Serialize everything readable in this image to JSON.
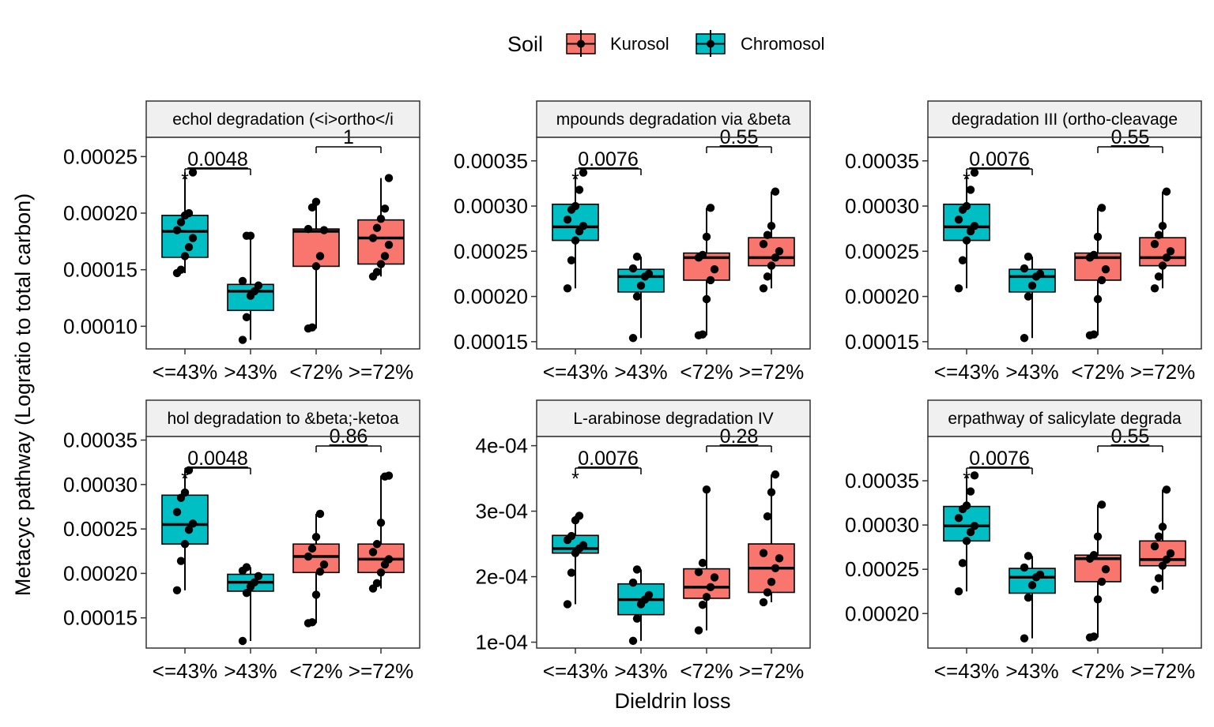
{
  "legend": {
    "title": "Soil",
    "items": [
      {
        "label": "Kurosol",
        "color": "#F8766D"
      },
      {
        "label": "Chromosol",
        "color": "#00BFC4"
      }
    ]
  },
  "chart_data": {
    "type": "boxplot",
    "xlabel": "Dieldrin loss",
    "ylabel": "Metacyc pathway (Logratio to total carbon)",
    "categories": [
      "<=43%",
      ">43%",
      "<72%",
      ">=72%"
    ],
    "category_soil": [
      "Chromosol",
      "Chromosol",
      "Kurosol",
      "Kurosol"
    ],
    "colors": {
      "Kurosol": "#F8766D",
      "Chromosol": "#00BFC4"
    },
    "legend_position": "top",
    "grid": false,
    "panels": [
      {
        "title": "echol degradation (<i>ortho</i",
        "ylim": [
          8e-05,
          0.000267
        ],
        "ticks": [
          "0.00010",
          "0.00015",
          "0.00020",
          "0.00025"
        ],
        "tick_values": [
          0.0001,
          0.00015,
          0.0002,
          0.00025
        ],
        "comparisons": [
          {
            "from": 0,
            "to": 1,
            "label": "0.0048",
            "star": "*"
          },
          {
            "from": 2,
            "to": 3,
            "label": "1",
            "star": ""
          }
        ],
        "boxes": [
          {
            "q1": 0.000161,
            "median": 0.000184,
            "q3": 0.000198,
            "low": 0.000147,
            "high": 0.000236,
            "points": [
              0.000147,
              0.00015,
              0.000162,
              0.00017,
              0.000178,
              0.000185,
              0.000192,
              0.000198,
              0.0002,
              0.000236
            ]
          },
          {
            "q1": 0.000114,
            "median": 0.000131,
            "q3": 0.000137,
            "low": 8.8e-05,
            "high": 0.00018,
            "points": [
              8.8e-05,
              0.000108,
              0.000127,
              0.000131,
              0.000136,
              0.00014,
              0.00018,
              0.00018
            ]
          },
          {
            "q1": 0.000153,
            "median": 0.000184,
            "q3": 0.000186,
            "low": 9.8e-05,
            "high": 0.00021,
            "points": [
              9.8e-05,
              9.9e-05,
              0.000153,
              0.000162,
              0.000185,
              0.000186,
              0.000205,
              0.00021
            ]
          },
          {
            "q1": 0.000155,
            "median": 0.000178,
            "q3": 0.000194,
            "low": 0.000144,
            "high": 0.000231,
            "points": [
              0.000144,
              0.000148,
              0.000155,
              0.000162,
              0.000172,
              0.000178,
              0.000187,
              0.000195,
              0.000204,
              0.000231
            ]
          }
        ]
      },
      {
        "title": "mpounds degradation via &beta",
        "ylim": [
          0.000142,
          0.000376
        ],
        "ticks": [
          "0.00015",
          "0.00020",
          "0.00025",
          "0.00030",
          "0.00035"
        ],
        "tick_values": [
          0.00015,
          0.0002,
          0.00025,
          0.0003,
          0.00035
        ],
        "comparisons": [
          {
            "from": 0,
            "to": 1,
            "label": "0.0076",
            "star": "*"
          },
          {
            "from": 2,
            "to": 3,
            "label": "0.55",
            "star": ""
          }
        ],
        "boxes": [
          {
            "q1": 0.000262,
            "median": 0.000277,
            "q3": 0.000302,
            "low": 0.000209,
            "high": 0.000337,
            "points": [
              0.000209,
              0.00024,
              0.000262,
              0.000272,
              0.000278,
              0.000285,
              0.000296,
              0.0003,
              0.000318,
              0.000337
            ]
          },
          {
            "q1": 0.000205,
            "median": 0.000222,
            "q3": 0.00023,
            "low": 0.000154,
            "high": 0.000244,
            "points": [
              0.000154,
              0.0002,
              0.000212,
              0.000222,
              0.000225,
              0.000231,
              0.000244
            ]
          },
          {
            "q1": 0.000218,
            "median": 0.000243,
            "q3": 0.000248,
            "low": 0.000157,
            "high": 0.000298,
            "points": [
              0.000157,
              0.000158,
              0.000197,
              0.000218,
              0.00023,
              0.000243,
              0.000246,
              0.000266,
              0.000298
            ]
          },
          {
            "q1": 0.000234,
            "median": 0.000243,
            "q3": 0.000265,
            "low": 0.000209,
            "high": 0.000316,
            "points": [
              0.000209,
              0.000222,
              0.000234,
              0.000243,
              0.00025,
              0.000258,
              0.000268,
              0.000278,
              0.000316
            ]
          }
        ]
      },
      {
        "title": "degradation III (ortho-cleavage",
        "ylim": [
          0.000142,
          0.000376
        ],
        "ticks": [
          "0.00015",
          "0.00020",
          "0.00025",
          "0.00030",
          "0.00035"
        ],
        "tick_values": [
          0.00015,
          0.0002,
          0.00025,
          0.0003,
          0.00035
        ],
        "comparisons": [
          {
            "from": 0,
            "to": 1,
            "label": "0.0076",
            "star": "*"
          },
          {
            "from": 2,
            "to": 3,
            "label": "0.55",
            "star": ""
          }
        ],
        "boxes": [
          {
            "q1": 0.000262,
            "median": 0.000277,
            "q3": 0.000302,
            "low": 0.000209,
            "high": 0.000337,
            "points": [
              0.000209,
              0.00024,
              0.000262,
              0.000272,
              0.000278,
              0.000285,
              0.000296,
              0.0003,
              0.000318,
              0.000337
            ]
          },
          {
            "q1": 0.000205,
            "median": 0.000222,
            "q3": 0.00023,
            "low": 0.000154,
            "high": 0.000244,
            "points": [
              0.000154,
              0.0002,
              0.000212,
              0.000222,
              0.000225,
              0.000231,
              0.000244
            ]
          },
          {
            "q1": 0.000218,
            "median": 0.000243,
            "q3": 0.000248,
            "low": 0.000157,
            "high": 0.000298,
            "points": [
              0.000157,
              0.000158,
              0.000197,
              0.000218,
              0.00023,
              0.000243,
              0.000246,
              0.000266,
              0.000298
            ]
          },
          {
            "q1": 0.000234,
            "median": 0.000243,
            "q3": 0.000265,
            "low": 0.000209,
            "high": 0.000316,
            "points": [
              0.000209,
              0.000222,
              0.000234,
              0.000243,
              0.00025,
              0.000258,
              0.000268,
              0.000278,
              0.000316
            ]
          }
        ]
      },
      {
        "title": "hol degradation to &beta;-ketoa",
        "ylim": [
          0.000116,
          0.000354
        ],
        "ticks": [
          "0.00015",
          "0.00020",
          "0.00025",
          "0.00030",
          "0.00035"
        ],
        "tick_values": [
          0.00015,
          0.0002,
          0.00025,
          0.0003,
          0.00035
        ],
        "comparisons": [
          {
            "from": 0,
            "to": 1,
            "label": "0.0048",
            "star": "*"
          },
          {
            "from": 2,
            "to": 3,
            "label": "0.86",
            "star": ""
          }
        ],
        "boxes": [
          {
            "q1": 0.000233,
            "median": 0.000255,
            "q3": 0.000288,
            "low": 0.000181,
            "high": 0.000316,
            "points": [
              0.000181,
              0.000214,
              0.000233,
              0.000249,
              0.000256,
              0.000269,
              0.000285,
              0.000291,
              0.000316
            ]
          },
          {
            "q1": 0.00018,
            "median": 0.00019,
            "q3": 0.000199,
            "low": 0.000124,
            "high": 0.000207,
            "points": [
              0.000124,
              0.000178,
              0.000185,
              0.00019,
              0.000197,
              0.000203,
              0.000207
            ]
          },
          {
            "q1": 0.000201,
            "median": 0.000219,
            "q3": 0.000233,
            "low": 0.000144,
            "high": 0.000267,
            "points": [
              0.000144,
              0.000145,
              0.000176,
              0.000202,
              0.00021,
              0.000219,
              0.000228,
              0.000241,
              0.000267
            ]
          },
          {
            "q1": 0.000201,
            "median": 0.000216,
            "q3": 0.000233,
            "low": 0.000183,
            "high": 0.00031,
            "points": [
              0.000183,
              0.000189,
              0.000201,
              0.00021,
              0.000216,
              0.000224,
              0.000233,
              0.000257,
              0.000309,
              0.00031
            ]
          }
        ]
      },
      {
        "title": "L-arabinose degradation IV",
        "ylim": [
          9.1e-05,
          0.000414
        ],
        "ticks": [
          "1e-04",
          "2e-04",
          "3e-04",
          "4e-04"
        ],
        "tick_values": [
          0.0001,
          0.0002,
          0.0003,
          0.0004
        ],
        "comparisons": [
          {
            "from": 0,
            "to": 1,
            "label": "0.0076",
            "star": "*"
          },
          {
            "from": 2,
            "to": 3,
            "label": "0.28",
            "star": ""
          }
        ],
        "boxes": [
          {
            "q1": 0.000236,
            "median": 0.000243,
            "q3": 0.000263,
            "low": 0.000158,
            "high": 0.000293,
            "points": [
              0.000158,
              0.000206,
              0.000236,
              0.000243,
              0.000248,
              0.000256,
              0.000262,
              0.000286,
              0.000293
            ]
          },
          {
            "q1": 0.000142,
            "median": 0.000165,
            "q3": 0.000189,
            "low": 0.000102,
            "high": 0.000211,
            "points": [
              0.000102,
              0.000136,
              0.000158,
              0.000165,
              0.000172,
              0.000191,
              0.000211
            ]
          },
          {
            "q1": 0.000167,
            "median": 0.000184,
            "q3": 0.000212,
            "low": 0.000118,
            "high": 0.000333,
            "points": [
              0.000118,
              0.000157,
              0.000169,
              0.000184,
              0.000199,
              0.000207,
              0.000221,
              0.000333
            ]
          },
          {
            "q1": 0.000176,
            "median": 0.000213,
            "q3": 0.00025,
            "low": 0.000161,
            "high": 0.000356,
            "points": [
              0.000161,
              0.000176,
              0.000192,
              0.000213,
              0.000228,
              0.000236,
              0.000292,
              0.000329,
              0.000356
            ]
          }
        ]
      },
      {
        "title": "erpathway of salicylate degrada",
        "ylim": [
          0.000161,
          0.0004
        ],
        "ticks": [
          "0.00020",
          "0.00025",
          "0.00030",
          "0.00035"
        ],
        "tick_values": [
          0.0002,
          0.00025,
          0.0003,
          0.00035
        ],
        "comparisons": [
          {
            "from": 0,
            "to": 1,
            "label": "0.0076",
            "star": "*"
          },
          {
            "from": 2,
            "to": 3,
            "label": "0.55",
            "star": ""
          }
        ],
        "boxes": [
          {
            "q1": 0.000282,
            "median": 0.000299,
            "q3": 0.000321,
            "low": 0.000225,
            "high": 0.000356,
            "points": [
              0.000225,
              0.000257,
              0.000282,
              0.000292,
              0.000299,
              0.000308,
              0.000318,
              0.000322,
              0.000338,
              0.000356
            ]
          },
          {
            "q1": 0.000223,
            "median": 0.000241,
            "q3": 0.000251,
            "low": 0.000172,
            "high": 0.000265,
            "points": [
              0.000172,
              0.000218,
              0.000232,
              0.000241,
              0.000244,
              0.000252,
              0.000265
            ]
          },
          {
            "q1": 0.000236,
            "median": 0.000262,
            "q3": 0.000266,
            "low": 0.000173,
            "high": 0.000323,
            "points": [
              0.000173,
              0.000174,
              0.000216,
              0.000236,
              0.00025,
              0.000262,
              0.000266,
              0.000287,
              0.000323
            ]
          },
          {
            "q1": 0.000254,
            "median": 0.000261,
            "q3": 0.000282,
            "low": 0.000227,
            "high": 0.00034,
            "points": [
              0.000227,
              0.00024,
              0.000254,
              0.000261,
              0.000268,
              0.000276,
              0.000287,
              0.000298,
              0.00034
            ]
          }
        ]
      }
    ]
  }
}
